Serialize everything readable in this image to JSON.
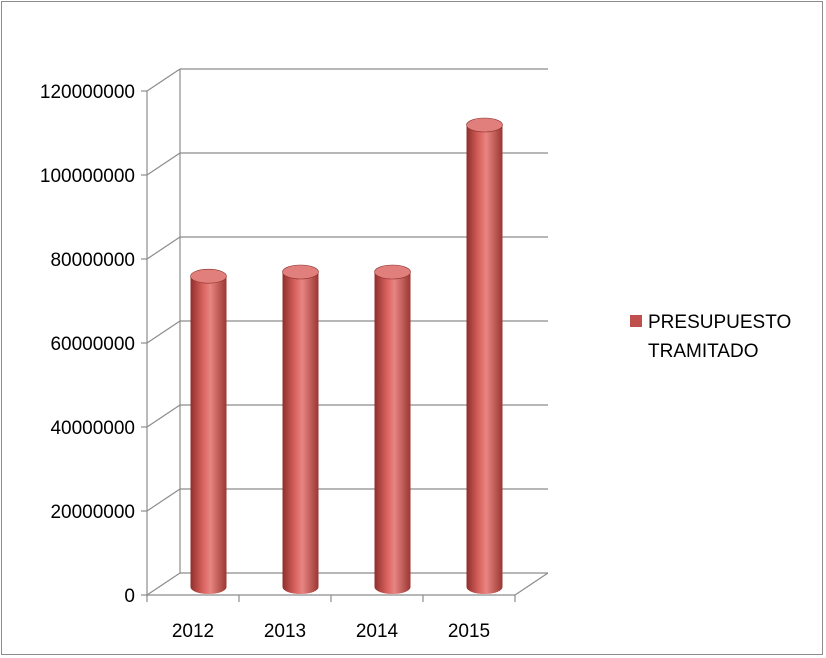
{
  "chart_data": {
    "type": "bar",
    "style": "3d-cylinder",
    "title": "",
    "xlabel": "",
    "ylabel": "",
    "categories": [
      "2012",
      "2013",
      "2014",
      "2015"
    ],
    "series": [
      {
        "name": "PRESUPUESTO TRAMITADO",
        "values": [
          74000000,
          75000000,
          75000000,
          110000000
        ],
        "color": "#c0504d"
      }
    ],
    "ylim": [
      0,
      120000000
    ],
    "y_ticks": [
      "0",
      "20000000",
      "40000000",
      "60000000",
      "80000000",
      "100000000",
      "120000000"
    ],
    "grid": true,
    "legend_position": "right"
  },
  "legend": {
    "line1": "PRESUPUESTO",
    "line2": "TRAMITADO"
  },
  "colors": {
    "bar": "#c0504d",
    "bar_dark": "#8e2f2c",
    "bar_light": "#e07f7c",
    "grid": "#8c8c8c"
  }
}
